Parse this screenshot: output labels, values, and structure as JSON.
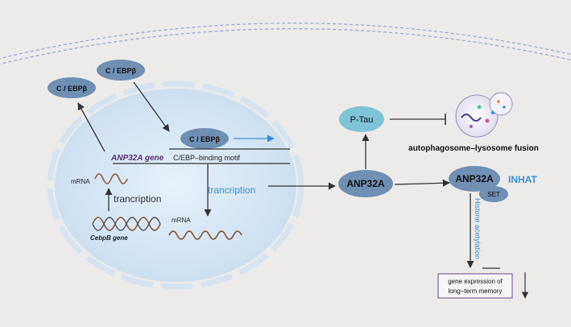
{
  "nucleus_labels": {
    "cebpb_outer_top": "C / EBPβ",
    "cebpb_outer_left": "C / EBPβ",
    "cebpb_inner": "C / EBPβ",
    "anp32a_gene": "ANP32A gene",
    "binding_motif": "C/EBP–binding motif",
    "mrna_left": "mRNA",
    "tranciption_left": "trancription",
    "cebpb_gene": "CebpB gene",
    "tranciption_mid": "trancription",
    "mrna_bottom": "mRNA"
  },
  "pathway_labels": {
    "anp32a_center": "ANP32A",
    "ptau": "P-Tau",
    "fusion": "autophagosome–lysosome fusion",
    "anp32a_right": "ANP32A",
    "inhat": "INHAT",
    "set": "SET",
    "histone": "Histone acetylation",
    "gene_expr_line1": "gene expression of",
    "gene_expr_line2": "long–term memory"
  },
  "colors": {
    "background": "#ecebea",
    "node_blue": "#6f8fb3",
    "ptau_teal": "#7fc3d6",
    "accent_blue": "#3a8fd6",
    "mrna_brown": "#8a5a3c",
    "gene_purple": "#5a2d7a",
    "box_purple": "#6a4a8c"
  }
}
